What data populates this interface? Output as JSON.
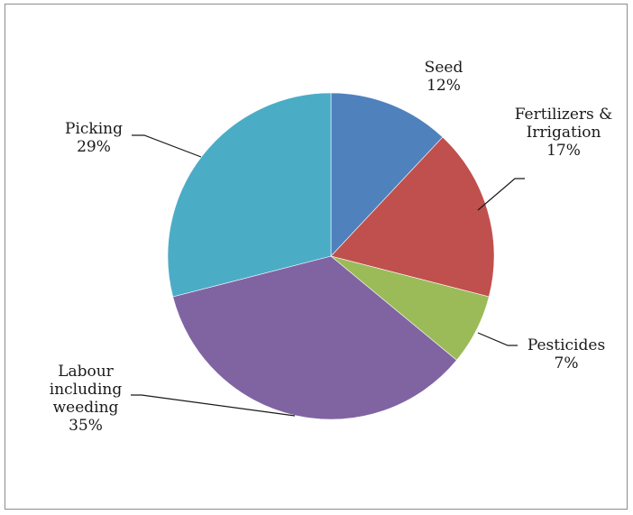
{
  "chart_data": {
    "type": "pie",
    "slices": [
      {
        "id": "seed",
        "label_lines": [
          "Seed",
          "12%"
        ],
        "value": 12,
        "color": "#4f81bd"
      },
      {
        "id": "fertilizers",
        "label_lines": [
          "Fertilizers &",
          "Irrigation",
          "17%"
        ],
        "value": 17,
        "color": "#c0504d"
      },
      {
        "id": "pesticides",
        "label_lines": [
          "Pesticides",
          "7%"
        ],
        "value": 7,
        "color": "#9bbb59"
      },
      {
        "id": "labour",
        "label_lines": [
          "Labour",
          "including",
          "weeding",
          "35%"
        ],
        "value": 35,
        "color": "#8064a2"
      },
      {
        "id": "picking",
        "label_lines": [
          "Picking",
          "29%"
        ],
        "value": 29,
        "color": "#4bacc6"
      }
    ],
    "legend": "none",
    "labels": "outside with leader lines"
  }
}
